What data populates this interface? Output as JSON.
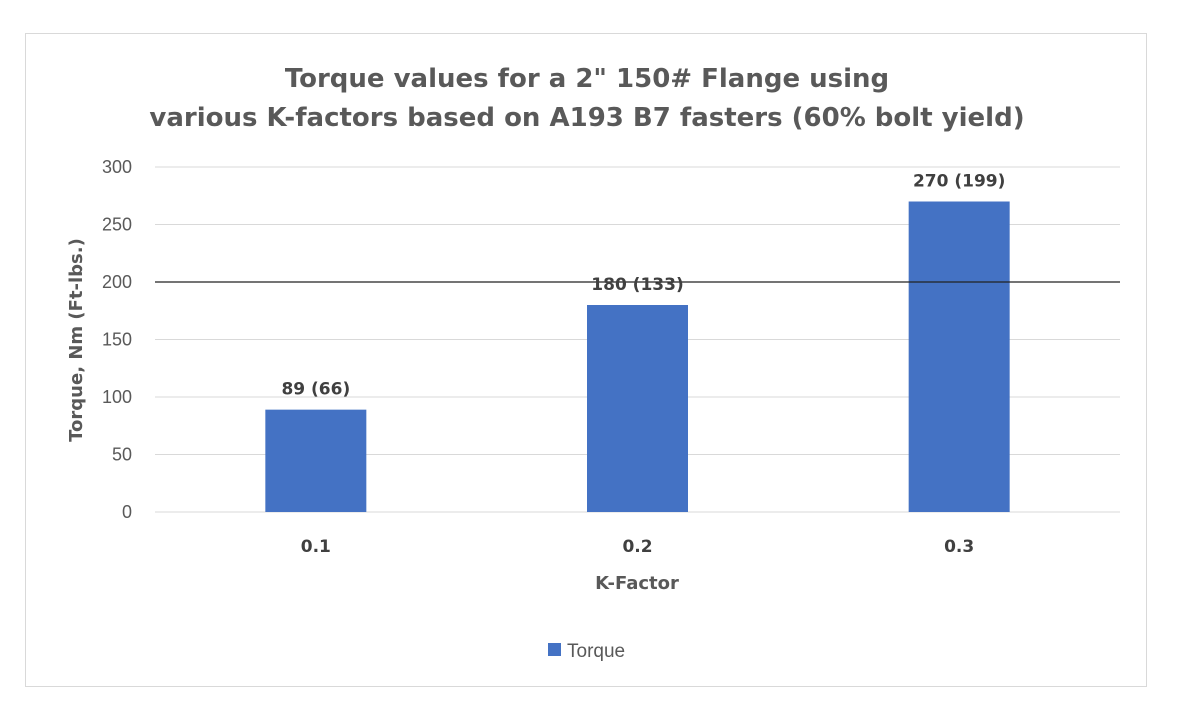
{
  "chart_data": {
    "type": "bar",
    "title_lines": [
      "Torque values  for a 2\" 150# Flange using",
      "various K-factors based on A193 B7 fasters (60% bolt yield)"
    ],
    "xlabel": "K-Factor",
    "ylabel": "Torque, Nm (Ft-lbs.)",
    "categories": [
      "0.1",
      "0.2",
      "0.3"
    ],
    "series": [
      {
        "name": "Torque",
        "values": [
          89,
          180,
          270
        ],
        "data_labels": [
          "89 (66)",
          "180 (133)",
          "270 (199)"
        ],
        "color": "#4472c4"
      }
    ],
    "ylim": [
      0,
      300
    ],
    "yticks": [
      0,
      50,
      100,
      150,
      200,
      250,
      300
    ],
    "reference_line": 200,
    "grid": true,
    "legend_position": "bottom"
  }
}
